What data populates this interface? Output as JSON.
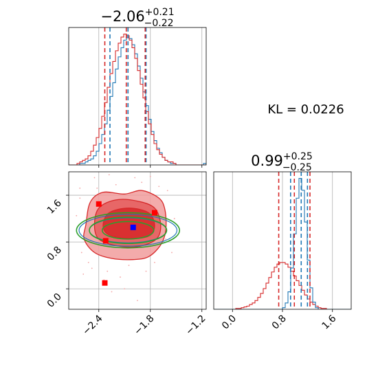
{
  "colors": {
    "posterior_a": "#d62728",
    "posterior_b": "#1f77b4",
    "gaussian_fit": "#2ca02c",
    "marker_red": "#ff0000",
    "marker_blue": "#0000ff",
    "grid": "#b0b0b0"
  },
  "titles": {
    "p1": {
      "base": "−2.06",
      "sup": "+0.21",
      "sub": "−0.22"
    },
    "p2": {
      "base": "0.99",
      "sup": "+0.25",
      "sub": "−0.25"
    }
  },
  "kl_text": "KL = 0.0226",
  "chart_data": [
    {
      "type": "histogram",
      "panel": "top-left",
      "xlim": [
        -2.75,
        -1.15
      ],
      "grid": true,
      "bins": [
        -2.75,
        -2.718,
        -2.686,
        -2.654,
        -2.622,
        -2.59,
        -2.558,
        -2.526,
        -2.494,
        -2.462,
        -2.43,
        -2.398,
        -2.366,
        -2.334,
        -2.302,
        -2.27,
        -2.238,
        -2.206,
        -2.174,
        -2.142,
        -2.11,
        -2.078,
        -2.046,
        -2.014,
        -1.982,
        -1.95,
        -1.918,
        -1.886,
        -1.854,
        -1.822,
        -1.79,
        -1.758,
        -1.726,
        -1.694,
        -1.662,
        -1.63,
        -1.598,
        -1.566,
        -1.534,
        -1.502,
        -1.47,
        -1.438,
        -1.406,
        -1.374,
        -1.342,
        -1.31,
        -1.278,
        -1.246,
        -1.214,
        -1.182,
        -1.15
      ],
      "series": [
        {
          "counts": [
            0,
            0,
            0,
            0,
            1,
            1,
            2,
            3,
            4,
            6,
            9,
            14,
            20,
            27,
            36,
            45,
            54,
            63,
            71,
            77,
            82,
            84,
            83,
            79,
            73,
            65,
            57,
            48,
            39,
            30,
            22,
            16,
            11,
            8,
            5,
            3,
            2,
            1,
            1,
            0,
            0,
            0,
            0,
            0,
            0,
            0,
            0,
            0,
            0,
            1
          ]
        },
        {
          "counts": [
            0,
            0,
            0,
            1,
            2,
            3,
            4,
            6,
            9,
            13,
            18,
            24,
            32,
            41,
            51,
            60,
            68,
            75,
            80,
            84,
            86,
            85,
            82,
            77,
            70,
            62,
            53,
            44,
            35,
            27,
            20,
            14,
            10,
            7,
            5,
            3,
            2,
            2,
            1,
            0,
            0,
            0,
            0,
            0,
            0,
            0,
            0,
            0,
            0,
            0
          ]
        }
      ],
      "quantile_lines": {
        "posterior_b": [
          -2.27,
          -2.06,
          -1.85
        ],
        "posterior_a": [
          -2.33,
          -2.08,
          -1.86
        ]
      }
    },
    {
      "type": "histogram",
      "panel": "bottom-right",
      "xlim": [
        -0.3,
        1.9
      ],
      "xticks": [
        "0.0",
        "0.8",
        "1.6"
      ],
      "grid": true,
      "bins": [
        -0.3,
        -0.256,
        -0.212,
        -0.168,
        -0.124,
        -0.08,
        -0.036,
        0.008,
        0.052,
        0.096,
        0.14,
        0.184,
        0.228,
        0.272,
        0.316,
        0.36,
        0.404,
        0.448,
        0.492,
        0.536,
        0.58,
        0.624,
        0.668,
        0.712,
        0.756,
        0.8,
        0.844,
        0.888,
        0.932,
        0.976,
        1.02,
        1.064,
        1.108,
        1.152,
        1.196,
        1.24,
        1.284,
        1.328,
        1.372,
        1.416,
        1.46,
        1.504,
        1.548,
        1.592,
        1.636,
        1.68,
        1.724,
        1.768,
        1.812,
        1.856,
        1.9
      ],
      "series": [
        {
          "counts": [
            0,
            0,
            0,
            0,
            0,
            0,
            0,
            0,
            1,
            1,
            2,
            3,
            4,
            6,
            8,
            11,
            15,
            20,
            26,
            33,
            40,
            47,
            53,
            57,
            59,
            59,
            57,
            53,
            48,
            42,
            36,
            30,
            24,
            18,
            13,
            9,
            6,
            4,
            2,
            1,
            1,
            0,
            0,
            0,
            0,
            0,
            0,
            0,
            0,
            0
          ]
        },
        {
          "counts": [
            0,
            0,
            0,
            0,
            0,
            0,
            0,
            0,
            0,
            0,
            0,
            0,
            0,
            0,
            0,
            0,
            0,
            0,
            0,
            0,
            0,
            0,
            0,
            0,
            0,
            2,
            8,
            22,
            52,
            95,
            140,
            165,
            150,
            110,
            62,
            27,
            9,
            2,
            0,
            0,
            0,
            0,
            0,
            0,
            0,
            0,
            0,
            0,
            0,
            0
          ]
        }
      ],
      "quantile_lines": {
        "posterior_a": [
          0.74,
          0.99,
          1.24
        ],
        "posterior_b": [
          0.93,
          1.1,
          1.2
        ]
      }
    },
    {
      "type": "contour",
      "panel": "bottom-left",
      "xlim": [
        -2.75,
        -1.15
      ],
      "ylim": [
        -0.35,
        2.0
      ],
      "xticks": [
        "−2.4",
        "−1.8",
        "−1.2"
      ],
      "yticks": [
        "0.0",
        "0.8",
        "1.6"
      ],
      "grid": true,
      "series": [
        {
          "kind": "density-contours",
          "contours": [
            [
              [
                -2.55,
                1.1
              ],
              [
                -2.5,
                1.48
              ],
              [
                -2.35,
                1.65
              ],
              [
                -2.1,
                1.62
              ],
              [
                -1.9,
                1.68
              ],
              [
                -1.7,
                1.55
              ],
              [
                -1.63,
                1.35
              ],
              [
                -1.62,
                1.0
              ],
              [
                -1.68,
                0.75
              ],
              [
                -1.82,
                0.55
              ],
              [
                -2.0,
                0.5
              ],
              [
                -2.25,
                0.52
              ],
              [
                -2.45,
                0.62
              ],
              [
                -2.57,
                0.85
              ]
            ],
            [
              [
                -2.45,
                1.08
              ],
              [
                -2.4,
                1.38
              ],
              [
                -2.2,
                1.52
              ],
              [
                -1.95,
                1.5
              ],
              [
                -1.75,
                1.38
              ],
              [
                -1.68,
                1.1
              ],
              [
                -1.73,
                0.85
              ],
              [
                -1.95,
                0.72
              ],
              [
                -2.2,
                0.74
              ],
              [
                -2.4,
                0.85
              ]
            ],
            [
              [
                -2.35,
                1.08
              ],
              [
                -2.28,
                1.3
              ],
              [
                -2.05,
                1.38
              ],
              [
                -1.82,
                1.3
              ],
              [
                -1.75,
                1.08
              ],
              [
                -1.82,
                0.9
              ],
              [
                -2.05,
                0.86
              ],
              [
                -2.28,
                0.92
              ]
            ]
          ]
        },
        {
          "kind": "scatter",
          "points": [
            [
              -2.62,
              1.55
            ],
            [
              -2.6,
              0.62
            ],
            [
              -2.52,
              0.45
            ],
            [
              -2.48,
              0.35
            ],
            [
              -2.42,
              1.72
            ],
            [
              -2.3,
              0.3
            ],
            [
              -2.2,
              1.78
            ],
            [
              -2.15,
              0.2
            ],
            [
              -2.05,
              0.4
            ],
            [
              -1.9,
              1.82
            ],
            [
              -1.75,
              0.45
            ],
            [
              -1.6,
              1.68
            ],
            [
              -1.55,
              0.62
            ],
            [
              -2.66,
              1.25
            ],
            [
              -2.34,
              0.15
            ],
            [
              -1.95,
              -0.2
            ],
            [
              -2.65,
              0.95
            ],
            [
              -1.52,
              1.2
            ],
            [
              -2.25,
              -0.05
            ],
            [
              -1.85,
              0.3
            ],
            [
              -1.7,
              1.75
            ],
            [
              -2.45,
              1.9
            ],
            [
              -2.58,
              0.25
            ],
            [
              -2.1,
              0.0
            ],
            [
              -2.38,
              1.62
            ],
            [
              -1.62,
              0.85
            ],
            [
              -2.28,
              1.95
            ],
            [
              -1.98,
              1.9
            ],
            [
              -1.8,
              1.92
            ],
            [
              -2.62,
              1.72
            ]
          ]
        },
        {
          "kind": "gaussian-ellipses",
          "center": [
            -2.06,
            1.0
          ],
          "sigma": [
            0.3,
            0.15
          ],
          "levels": [
            1,
            1.5,
            2
          ]
        },
        {
          "kind": "markers",
          "red": [
            [
              -2.4,
              1.45
            ],
            [
              -1.75,
              1.3
            ],
            [
              -2.32,
              0.82
            ],
            [
              -2.33,
              0.1
            ]
          ],
          "blue": [
            [
              -2.0,
              1.05
            ]
          ]
        }
      ]
    }
  ]
}
